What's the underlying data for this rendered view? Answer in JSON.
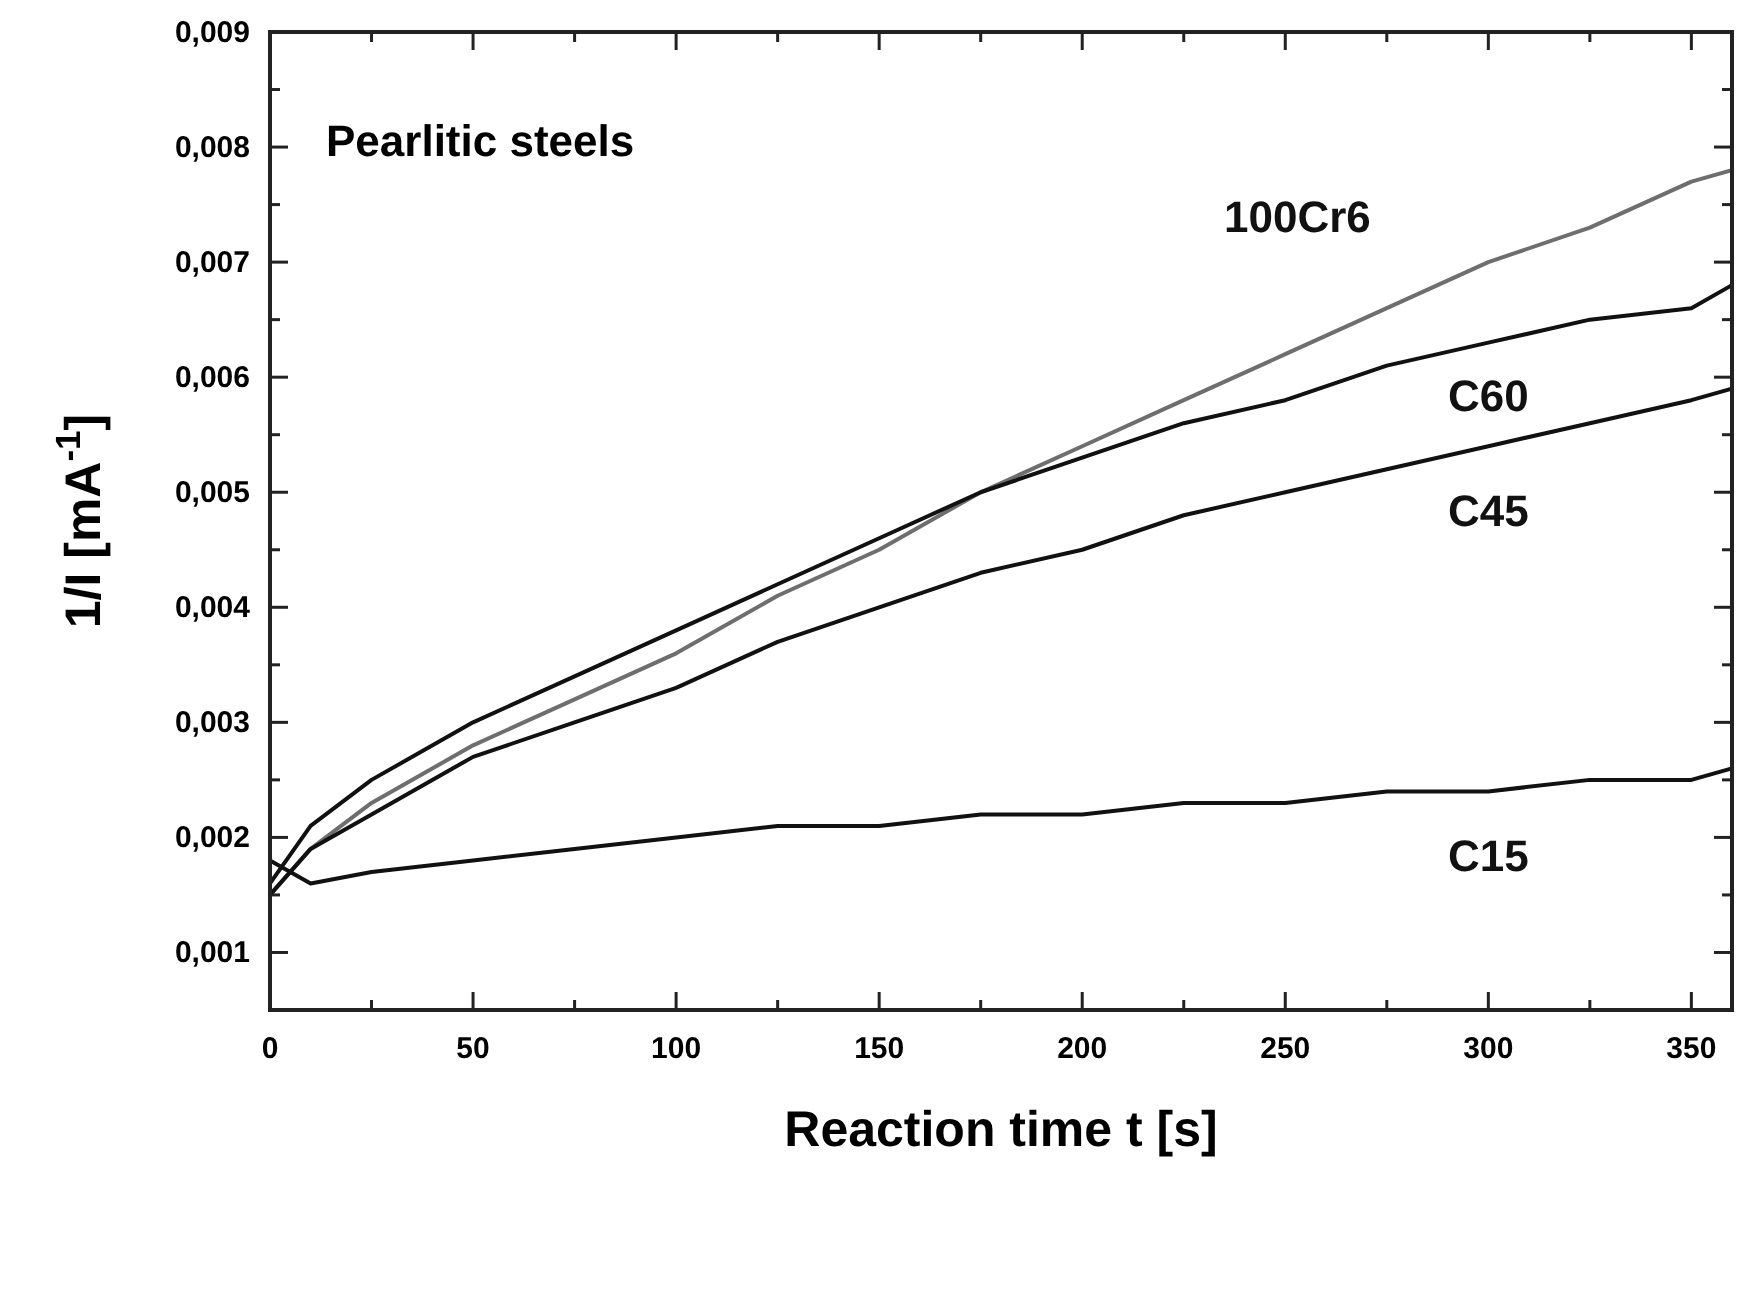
{
  "chart_data": {
    "type": "line",
    "title": "Pearlitic steels",
    "xlabel": "Reaction time t [s]",
    "ylabel": "1/I [mA$^{-1}$]",
    "x": [
      0,
      10,
      25,
      50,
      75,
      100,
      125,
      150,
      175,
      200,
      225,
      250,
      275,
      300,
      325,
      350,
      360
    ],
    "series": [
      {
        "name": "100Cr6",
        "color": "#6e6e6e",
        "values": [
          0.0015,
          0.0019,
          0.0023,
          0.0028,
          0.0032,
          0.0036,
          0.0041,
          0.0045,
          0.005,
          0.0054,
          0.0058,
          0.0062,
          0.0066,
          0.007,
          0.0073,
          0.0077,
          0.0078
        ]
      },
      {
        "name": "C60",
        "color": "#111111",
        "values": [
          0.0016,
          0.0021,
          0.0025,
          0.003,
          0.0034,
          0.0038,
          0.0042,
          0.0046,
          0.005,
          0.0053,
          0.0056,
          0.0058,
          0.0061,
          0.0063,
          0.0065,
          0.0066,
          0.0068
        ]
      },
      {
        "name": "C45",
        "color": "#111111",
        "values": [
          0.0015,
          0.0019,
          0.0022,
          0.0027,
          0.003,
          0.0033,
          0.0037,
          0.004,
          0.0043,
          0.0045,
          0.0048,
          0.005,
          0.0052,
          0.0054,
          0.0056,
          0.0058,
          0.0059
        ]
      },
      {
        "name": "C15",
        "color": "#111111",
        "values": [
          0.0018,
          0.0016,
          0.0017,
          0.0018,
          0.0019,
          0.002,
          0.0021,
          0.0021,
          0.0022,
          0.0022,
          0.0023,
          0.0023,
          0.0024,
          0.0024,
          0.0025,
          0.0025,
          0.0026
        ]
      }
    ],
    "xlim": [
      0,
      360
    ],
    "xticks": [
      {
        "value": 0,
        "label": "0"
      },
      {
        "value": 25,
        "label": null
      },
      {
        "value": 50,
        "label": "50"
      },
      {
        "value": 75,
        "label": null
      },
      {
        "value": 100,
        "label": "100"
      },
      {
        "value": 125,
        "label": null
      },
      {
        "value": 150,
        "label": "150"
      },
      {
        "value": 175,
        "label": null
      },
      {
        "value": 200,
        "label": "200"
      },
      {
        "value": 225,
        "label": null
      },
      {
        "value": 250,
        "label": "250"
      },
      {
        "value": 275,
        "label": null
      },
      {
        "value": 300,
        "label": "300"
      },
      {
        "value": 325,
        "label": null
      },
      {
        "value": 350,
        "label": "350"
      }
    ],
    "ylim": [
      0.0005,
      0.009
    ],
    "yticks": [
      {
        "value": 0.001,
        "label": "0,001"
      },
      {
        "value": 0.0015,
        "label": null
      },
      {
        "value": 0.002,
        "label": "0,002"
      },
      {
        "value": 0.0025,
        "label": null
      },
      {
        "value": 0.003,
        "label": "0,003"
      },
      {
        "value": 0.0035,
        "label": null
      },
      {
        "value": 0.004,
        "label": "0,004"
      },
      {
        "value": 0.0045,
        "label": null
      },
      {
        "value": 0.005,
        "label": "0,005"
      },
      {
        "value": 0.0055,
        "label": null
      },
      {
        "value": 0.006,
        "label": "0,006"
      },
      {
        "value": 0.0065,
        "label": null
      },
      {
        "value": 0.007,
        "label": "0,007"
      },
      {
        "value": 0.0075,
        "label": null
      },
      {
        "value": 0.008,
        "label": "0,008"
      },
      {
        "value": 0.0085,
        "label": null
      },
      {
        "value": 0.009,
        "label": "0,009"
      }
    ],
    "grid": false,
    "marker": "none",
    "line_style": "solid"
  }
}
